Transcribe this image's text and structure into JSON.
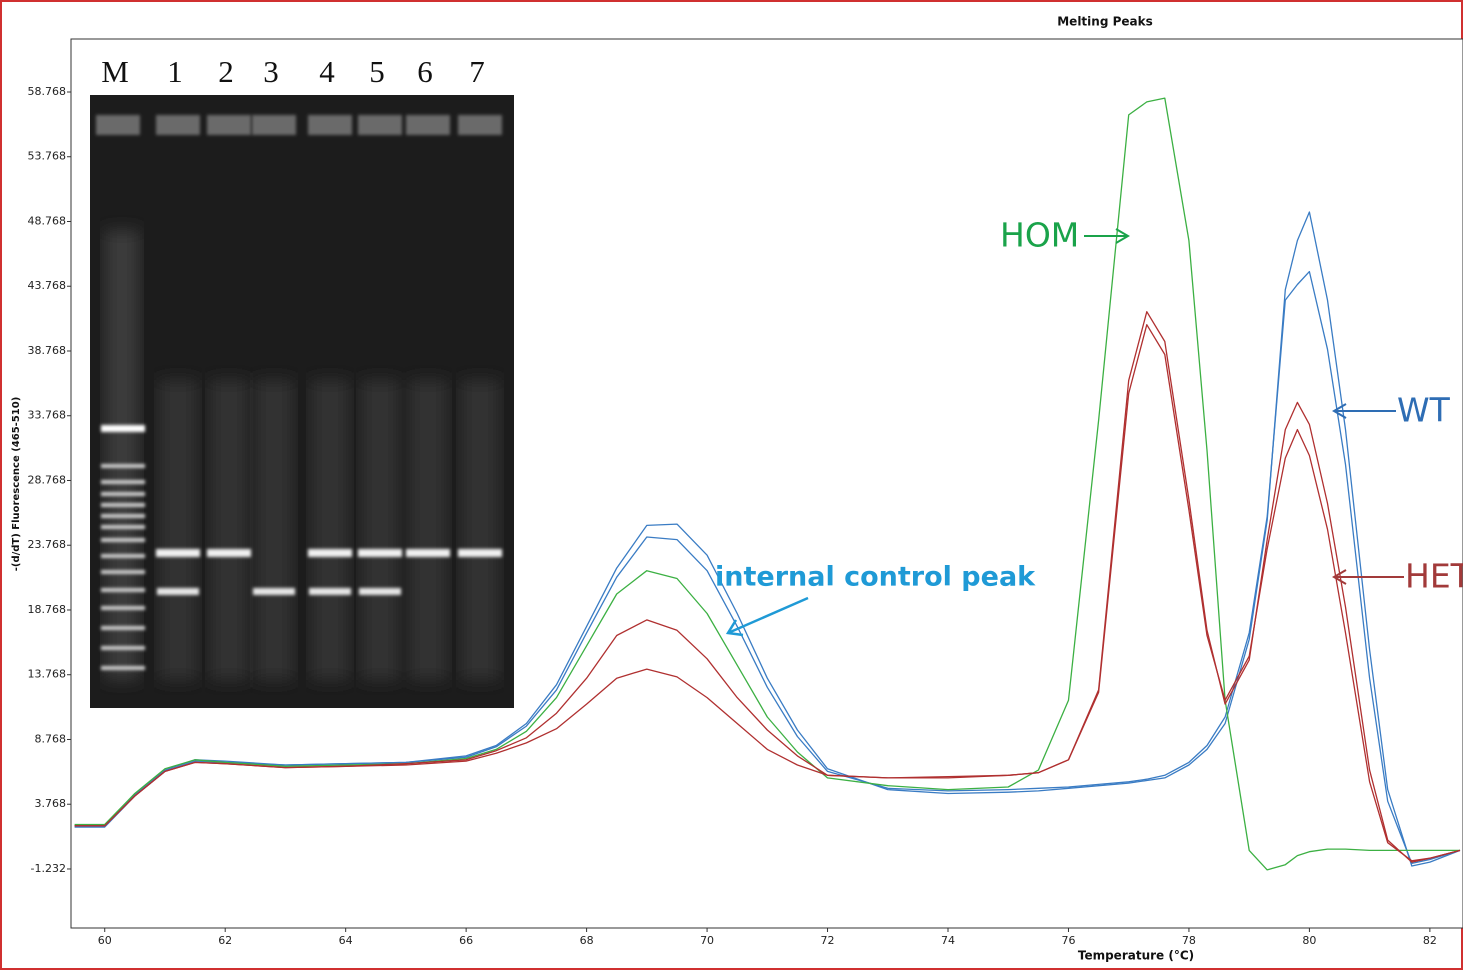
{
  "chart_data": {
    "type": "line",
    "title": "Melting Peaks",
    "y_label": "-(d/dT) Fluorescence (465-510)",
    "x_label": "Temperature (°C)",
    "xlim": [
      59.44,
      82.55
    ],
    "ylim": [
      -5.79,
      62.86
    ],
    "xticks": [
      60,
      62,
      64,
      66,
      68,
      70,
      72,
      74,
      76,
      78,
      80,
      82
    ],
    "yticks": [
      -1.232,
      3.768,
      8.768,
      13.768,
      18.768,
      23.768,
      28.768,
      33.768,
      38.768,
      43.768,
      48.768,
      53.768,
      58.768
    ],
    "x": [
      59.5,
      60,
      60.5,
      61,
      61.5,
      62,
      63,
      64,
      65,
      66,
      66.5,
      67,
      67.5,
      68,
      68.5,
      69,
      69.5,
      70,
      70.5,
      71,
      71.5,
      72,
      73,
      74,
      75,
      75.5,
      76,
      76.5,
      77,
      77.3,
      77.6,
      78,
      78.3,
      78.6,
      79,
      79.3,
      79.6,
      79.8,
      80,
      80.3,
      80.6,
      81,
      81.3,
      81.7,
      82,
      82.5
    ],
    "series": [
      {
        "color": "#3a7cc4",
        "values": [
          2.1,
          2.1,
          4.5,
          6.4,
          7.2,
          7.1,
          6.8,
          6.9,
          7.0,
          7.5,
          8.3,
          10.0,
          13.0,
          17.5,
          22.0,
          25.3,
          25.4,
          23.0,
          18.5,
          13.5,
          9.5,
          6.5,
          4.9,
          4.6,
          4.7,
          4.8,
          5.0,
          5.2,
          5.4,
          5.6,
          5.8,
          6.8,
          8.0,
          10.0,
          16.5,
          25.7,
          43.5,
          47.3,
          49.5,
          42.7,
          32.7,
          15.7,
          4.9,
          -1.0,
          -0.7,
          0.2
        ]
      },
      {
        "color": "#3a7cc4",
        "values": [
          2.0,
          2.0,
          4.4,
          6.3,
          7.1,
          7.0,
          6.8,
          6.9,
          7.0,
          7.4,
          8.2,
          9.8,
          12.6,
          17.0,
          21.3,
          24.4,
          24.2,
          21.8,
          17.5,
          12.8,
          9.0,
          6.3,
          5.0,
          4.8,
          4.9,
          5.0,
          5.1,
          5.3,
          5.5,
          5.7,
          6.0,
          7.0,
          8.3,
          10.5,
          17.0,
          26.0,
          42.7,
          43.9,
          44.9,
          38.9,
          30.0,
          13.5,
          4.0,
          -0.8,
          -0.5,
          0.2
        ]
      },
      {
        "color": "#3cb043",
        "values": [
          2.2,
          2.2,
          4.6,
          6.5,
          7.2,
          7.0,
          6.7,
          6.8,
          6.9,
          7.3,
          8.0,
          9.4,
          12.0,
          16.0,
          20.0,
          21.8,
          21.2,
          18.5,
          14.5,
          10.5,
          7.8,
          5.8,
          5.2,
          4.9,
          5.1,
          6.4,
          11.8,
          33.4,
          57.0,
          58.0,
          58.3,
          47.3,
          31.1,
          11.8,
          0.2,
          -1.3,
          -0.9,
          -0.2,
          0.1,
          0.3,
          0.3,
          0.2,
          0.2,
          0.2,
          0.2,
          0.2
        ]
      },
      {
        "color": "#b03030",
        "values": [
          2.1,
          2.1,
          4.4,
          6.3,
          7.0,
          6.9,
          6.6,
          6.7,
          6.9,
          7.2,
          7.9,
          8.9,
          10.8,
          13.5,
          16.8,
          18.0,
          17.2,
          15.0,
          12.0,
          9.5,
          7.5,
          6.0,
          5.8,
          5.9,
          6.0,
          6.2,
          7.2,
          12.6,
          36.5,
          41.8,
          39.5,
          27.3,
          17.2,
          11.5,
          14.9,
          24.2,
          32.7,
          34.8,
          33.1,
          27.0,
          19.0,
          6.4,
          1.0,
          -0.7,
          -0.4,
          0.2
        ]
      },
      {
        "color": "#b03030",
        "values": [
          2.1,
          2.1,
          4.4,
          6.3,
          7.0,
          6.9,
          6.6,
          6.7,
          6.8,
          7.1,
          7.7,
          8.5,
          9.6,
          11.5,
          13.5,
          14.2,
          13.6,
          12.0,
          10.0,
          8.0,
          6.8,
          6.0,
          5.8,
          5.8,
          6.0,
          6.2,
          7.2,
          12.4,
          35.5,
          40.8,
          38.5,
          26.5,
          16.8,
          11.8,
          15.2,
          23.5,
          30.5,
          32.7,
          30.7,
          25.0,
          17.0,
          5.5,
          0.8,
          -0.6,
          -0.4,
          0.2
        ]
      }
    ],
    "annotations": [
      {
        "text": "HOM",
        "color": "#1aa34a"
      },
      {
        "text": "WT",
        "color": "#2e6db4"
      },
      {
        "text": "HET",
        "color": "#a23a3a"
      },
      {
        "text": "internal control peak",
        "color": "#1f9ad6"
      }
    ],
    "inset": {
      "lanes": [
        "M",
        "1",
        "2",
        "3",
        "4",
        "5",
        "6",
        "7"
      ]
    }
  }
}
